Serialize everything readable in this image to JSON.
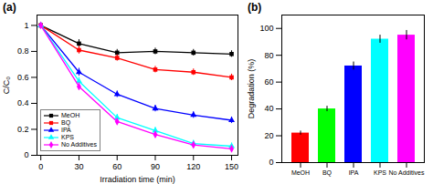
{
  "chart_data": [
    {
      "type": "line",
      "title": "(a)",
      "xlabel": "Irradiation time (min)",
      "ylabel": "C/C₀",
      "x": [
        0,
        30,
        60,
        90,
        120,
        150
      ],
      "series": [
        {
          "name": "MeOH",
          "color": "black",
          "marker": "square",
          "values": [
            1.0,
            0.86,
            0.79,
            0.8,
            0.79,
            0.78
          ],
          "errors": [
            0.0,
            0.03,
            0.025,
            0.025,
            0.025,
            0.025
          ]
        },
        {
          "name": "BQ",
          "color": "red",
          "marker": "square",
          "values": [
            1.0,
            0.81,
            0.75,
            0.66,
            0.64,
            0.6
          ],
          "errors": [
            0.0,
            0.03,
            0.025,
            0.025,
            0.025,
            0.025
          ]
        },
        {
          "name": "IPA",
          "color": "blue",
          "marker": "triangle",
          "values": [
            1.0,
            0.64,
            0.47,
            0.36,
            0.31,
            0.27
          ],
          "errors": [
            0.0,
            0.03,
            0.025,
            0.025,
            0.025,
            0.025
          ]
        },
        {
          "name": "KPS",
          "color": "cyan",
          "marker": "triangle",
          "values": [
            1.0,
            0.57,
            0.29,
            0.19,
            0.09,
            0.07
          ],
          "errors": [
            0.0,
            0.03,
            0.025,
            0.025,
            0.025,
            0.025
          ]
        },
        {
          "name": "No Additives",
          "color": "magenta",
          "marker": "diamond",
          "values": [
            1.0,
            0.53,
            0.26,
            0.16,
            0.08,
            0.05
          ],
          "errors": [
            0.0,
            0.03,
            0.025,
            0.025,
            0.025,
            0.025
          ]
        }
      ],
      "xlim": [
        -3,
        155
      ],
      "ylim": [
        0.0,
        1.08
      ],
      "xticks": [
        0,
        30,
        60,
        90,
        120,
        150
      ],
      "yticks": [
        0,
        0.2,
        0.4,
        0.6,
        0.8,
        1.0
      ],
      "legend": "lower left"
    },
    {
      "type": "bar",
      "title": "(b)",
      "ylabel": "Degradation (%)",
      "categories": [
        "MeOH",
        "BQ",
        "IPA",
        "KPS",
        "No Additives"
      ],
      "values": [
        22,
        40,
        72,
        92,
        95
      ],
      "errors": [
        1.5,
        2.0,
        3.0,
        3.0,
        3.5
      ],
      "colors": [
        "red",
        "lime",
        "blue",
        "cyan",
        "magenta"
      ],
      "ylim": [
        0,
        110
      ],
      "yticks": [
        0,
        20,
        40,
        60,
        80,
        100
      ]
    }
  ]
}
